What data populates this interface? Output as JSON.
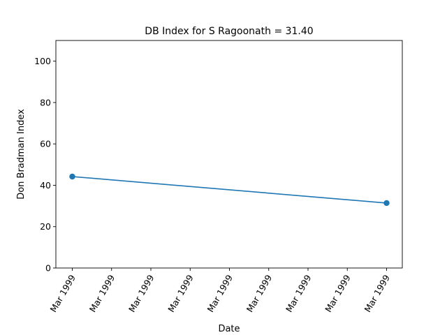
{
  "chart_data": {
    "type": "line",
    "title": "DB Index for S Ragoonath = 31.40",
    "xlabel": "Date",
    "ylabel": "Don Bradman Index",
    "x_tick_labels": [
      "Mar 1999",
      "Mar 1999",
      "Mar 1999",
      "Mar 1999",
      "Mar 1999",
      "Mar 1999",
      "Mar 1999",
      "Mar 1999",
      "Mar 1999"
    ],
    "y_ticks": [
      0,
      20,
      40,
      60,
      80,
      100
    ],
    "ylim": [
      0,
      110
    ],
    "grid": false,
    "series": [
      {
        "color": "#1f77b4",
        "points": [
          {
            "x": "Mar 1999",
            "y": 44.2
          },
          {
            "x": "Mar 1999",
            "y": 31.4
          }
        ]
      }
    ]
  }
}
